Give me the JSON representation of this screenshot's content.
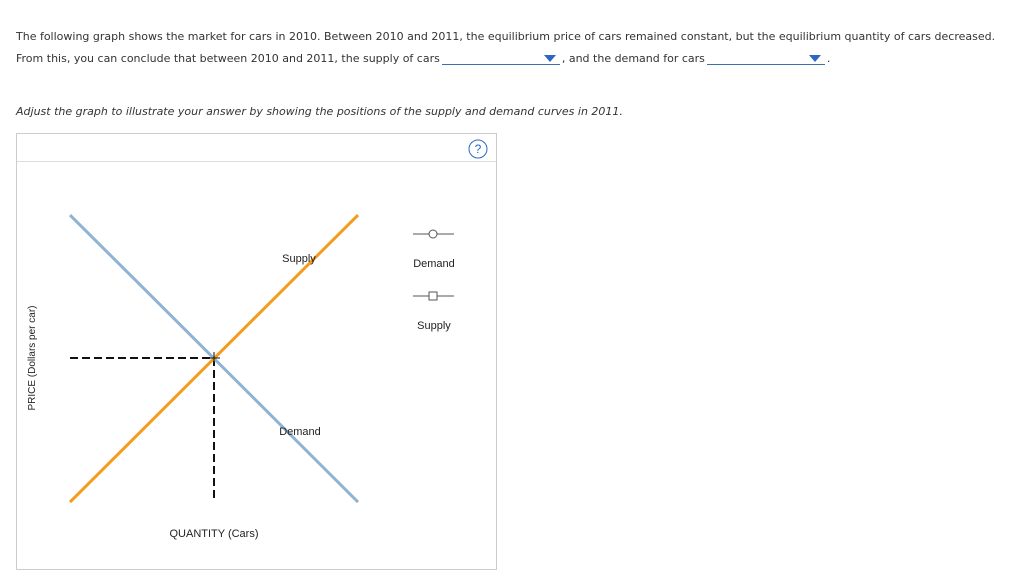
{
  "question": {
    "line1": "The following graph shows the market for cars in 2010. Between 2010 and 2011, the equilibrium price of cars remained constant, but the equilibrium quantity of cars decreased.",
    "line2_start": "From this, you can conclude that between 2010 and 2011, the supply of cars",
    "line2_middle": ", and the demand for cars",
    "line2_end": "."
  },
  "instruction": "Adjust the graph to illustrate your answer by showing the positions of the supply and demand curves in 2011.",
  "graph": {
    "help": "?",
    "y_axis_label": "PRICE (Dollars per car)",
    "x_axis_label": "QUANTITY (Cars)",
    "curve_labels": {
      "supply": "Supply",
      "demand": "Demand"
    },
    "legend": [
      {
        "label": "Demand"
      },
      {
        "label": "Supply"
      }
    ]
  }
}
